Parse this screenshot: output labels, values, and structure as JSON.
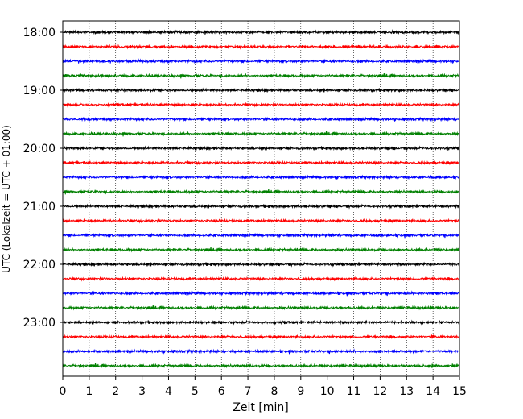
{
  "chart_data": {
    "type": "line",
    "title": "",
    "xlabel": "Zeit  [min]",
    "ylabel": "UTC (Lokalzeit = UTC + 01:00)",
    "xlim": [
      0,
      15
    ],
    "x_ticks": [
      0,
      1,
      2,
      3,
      4,
      5,
      6,
      7,
      8,
      9,
      10,
      11,
      12,
      13,
      14,
      15
    ],
    "y_ticks": [
      "18:00",
      "19:00",
      "20:00",
      "21:00",
      "22:00",
      "23:00"
    ],
    "grid": "vertical-dotted",
    "series_colors": [
      "#000000",
      "#ff0000",
      "#0000ff",
      "#008000"
    ],
    "traces_per_hour": 4,
    "trace_minutes": 15,
    "start": "18:00",
    "end": "23:45",
    "rows": [
      "18:00",
      "18:15",
      "18:30",
      "18:45",
      "19:00",
      "19:15",
      "19:30",
      "19:45",
      "20:00",
      "20:15",
      "20:30",
      "20:45",
      "21:00",
      "21:15",
      "21:30",
      "21:45",
      "22:00",
      "22:15",
      "22:30",
      "22:45",
      "23:00",
      "23:15",
      "23:30",
      "23:45"
    ]
  }
}
